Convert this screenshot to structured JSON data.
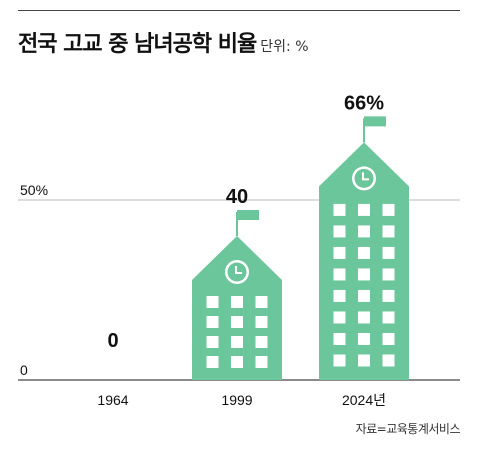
{
  "title": "전국 고교 중 남녀공학 비율",
  "unit": "단위: %",
  "source": "자료=교육통계서비스",
  "colors": {
    "building": "#6cc69b",
    "window": "#ffffff",
    "grid": "#bbbbbb",
    "axis": "#444444",
    "flag": "#6cc69b"
  },
  "chart_data": {
    "type": "bar",
    "categories": [
      "1964",
      "1999",
      "2024년"
    ],
    "values": [
      0,
      40,
      66
    ],
    "value_labels": [
      "0",
      "40",
      "66%"
    ],
    "y_tick_labels": [
      "0",
      "50%"
    ],
    "y_ticks": [
      0,
      50
    ],
    "ylim": [
      0,
      100
    ],
    "grid": true,
    "mark_style": "school building with flag and clock"
  }
}
